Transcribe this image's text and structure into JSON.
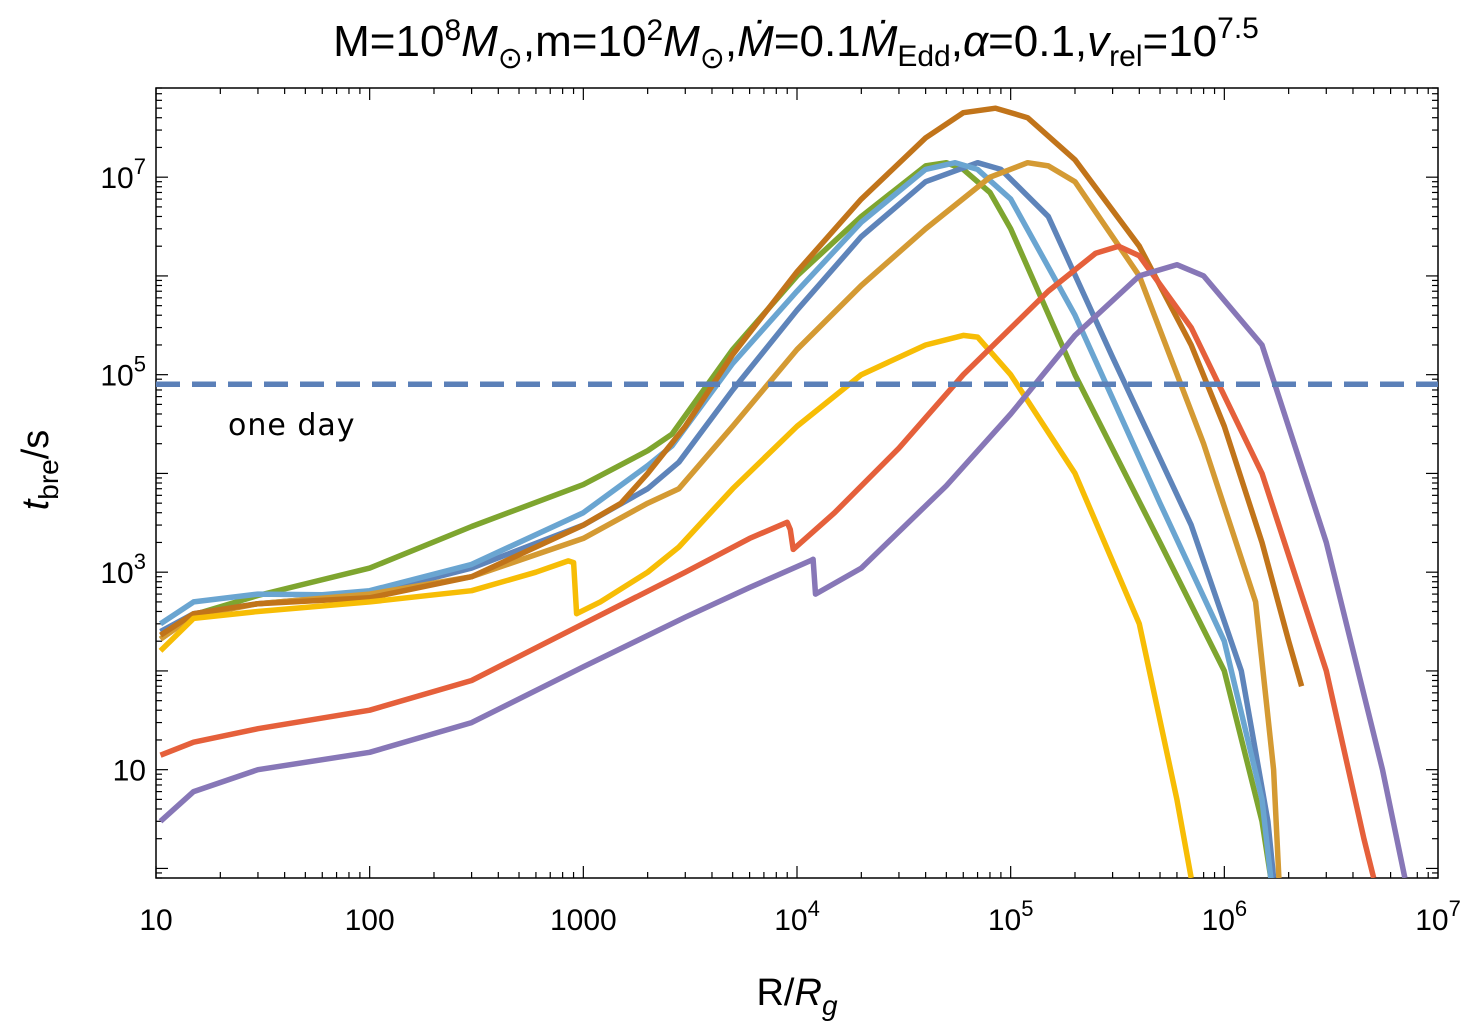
{
  "chart_data": {
    "type": "line",
    "title": {
      "parts": [
        "M=10",
        "8",
        "M",
        "⊙",
        ",m=10",
        "2",
        "M",
        "⊙",
        ",",
        "Ṁ",
        "=0.1",
        "Ṁ",
        "Edd",
        ",",
        "α",
        "=0.1,",
        "v",
        "rel",
        "=10",
        "7.5"
      ]
    },
    "xlabel": {
      "main": "R/",
      "italic": "R",
      "sub": "g"
    },
    "ylabel": {
      "italic": "t",
      "sub": "bre",
      "main": "/s"
    },
    "x_scale": "log",
    "y_scale": "log",
    "xlim": [
      10,
      10000000
    ],
    "ylim": [
      0.8,
      80000000
    ],
    "x_ticks": [
      {
        "value": 10,
        "base": "10",
        "exp": ""
      },
      {
        "value": 100,
        "base": "100",
        "exp": ""
      },
      {
        "value": 1000,
        "base": "1000",
        "exp": ""
      },
      {
        "value": 10000,
        "base": "10",
        "exp": "4"
      },
      {
        "value": 100000,
        "base": "10",
        "exp": "5"
      },
      {
        "value": 1000000,
        "base": "10",
        "exp": "6"
      },
      {
        "value": 10000000,
        "base": "10",
        "exp": "7"
      }
    ],
    "y_ticks": [
      {
        "value": 10,
        "base": "10",
        "exp": ""
      },
      {
        "value": 1000,
        "base": "10",
        "exp": "3"
      },
      {
        "value": 100000,
        "base": "10",
        "exp": "5"
      },
      {
        "value": 10000000,
        "base": "10",
        "exp": "7"
      }
    ],
    "reference_line": {
      "y": 80000,
      "style": "dashed",
      "color": "#5b80b8",
      "label": "one day"
    },
    "series": [
      {
        "color": "#7ea52f",
        "points": [
          [
            10.5,
            210
          ],
          [
            15,
            370
          ],
          [
            30,
            580
          ],
          [
            100,
            1100
          ],
          [
            300,
            2900
          ],
          [
            1000,
            7700
          ],
          [
            2000,
            17000
          ],
          [
            2600,
            25000
          ],
          [
            5000,
            180000
          ],
          [
            10000,
            1000000
          ],
          [
            20000,
            4000000
          ],
          [
            40000,
            13000000
          ],
          [
            50000,
            14000000
          ],
          [
            60000,
            12000000
          ],
          [
            80000,
            7000000
          ],
          [
            100000,
            3000000
          ],
          [
            200000,
            100000
          ],
          [
            500000,
            2000
          ],
          [
            1000000,
            100
          ],
          [
            1500000,
            3
          ],
          [
            1650000,
            0.8
          ]
        ]
      },
      {
        "color": "#5e84ba",
        "points": [
          [
            10.5,
            250
          ],
          [
            15,
            380
          ],
          [
            30,
            480
          ],
          [
            100,
            600
          ],
          [
            300,
            1100
          ],
          [
            1000,
            3000
          ],
          [
            2000,
            7000
          ],
          [
            2800,
            13000
          ],
          [
            5000,
            70000
          ],
          [
            10000,
            450000
          ],
          [
            20000,
            2500000
          ],
          [
            40000,
            9000000
          ],
          [
            70000,
            14000000
          ],
          [
            90000,
            12000000
          ],
          [
            150000,
            4000000
          ],
          [
            300000,
            150000
          ],
          [
            700000,
            3000
          ],
          [
            1200000,
            100
          ],
          [
            1600000,
            3
          ],
          [
            1700000,
            0.8
          ]
        ]
      },
      {
        "color": "#6aa5d1",
        "points": [
          [
            10.5,
            300
          ],
          [
            15,
            500
          ],
          [
            30,
            600
          ],
          [
            60,
            590
          ],
          [
            100,
            650
          ],
          [
            300,
            1200
          ],
          [
            1000,
            4000
          ],
          [
            2000,
            12000
          ],
          [
            2600,
            19000
          ],
          [
            5000,
            130000
          ],
          [
            10000,
            700000
          ],
          [
            20000,
            3500000
          ],
          [
            40000,
            12000000
          ],
          [
            55000,
            14000000
          ],
          [
            70000,
            12000000
          ],
          [
            100000,
            6000000
          ],
          [
            200000,
            400000
          ],
          [
            500000,
            5000
          ],
          [
            1000000,
            200
          ],
          [
            1500000,
            5
          ],
          [
            1650000,
            0.8
          ]
        ]
      },
      {
        "color": "#d49a33",
        "points": [
          [
            10.5,
            210
          ],
          [
            15,
            360
          ],
          [
            30,
            480
          ],
          [
            100,
            600
          ],
          [
            300,
            900
          ],
          [
            1000,
            2200
          ],
          [
            2000,
            5000
          ],
          [
            2800,
            7000
          ],
          [
            5000,
            30000
          ],
          [
            10000,
            180000
          ],
          [
            20000,
            800000
          ],
          [
            40000,
            3000000
          ],
          [
            80000,
            10000000
          ],
          [
            120000,
            14000000
          ],
          [
            150000,
            13000000
          ],
          [
            200000,
            9000000
          ],
          [
            400000,
            1000000
          ],
          [
            800000,
            20000
          ],
          [
            1400000,
            500
          ],
          [
            1700000,
            10
          ],
          [
            1800000,
            0.8
          ]
        ]
      },
      {
        "color": "#c1741a",
        "points": [
          [
            10.5,
            230
          ],
          [
            15,
            380
          ],
          [
            30,
            480
          ],
          [
            100,
            550
          ],
          [
            300,
            900
          ],
          [
            1000,
            3000
          ],
          [
            1500,
            5000
          ],
          [
            2000,
            10000
          ],
          [
            3000,
            30000
          ],
          [
            5000,
            160000
          ],
          [
            10000,
            1100000
          ],
          [
            20000,
            6000000
          ],
          [
            40000,
            25000000
          ],
          [
            60000,
            45000000
          ],
          [
            85000,
            50000000
          ],
          [
            120000,
            40000000
          ],
          [
            200000,
            15000000
          ],
          [
            400000,
            2000000
          ],
          [
            700000,
            200000
          ],
          [
            1000000,
            30000
          ],
          [
            1500000,
            2000
          ],
          [
            2000000,
            200
          ],
          [
            2300000,
            70
          ]
        ]
      },
      {
        "color": "#f7bd05",
        "points": [
          [
            10.5,
            160
          ],
          [
            15,
            340
          ],
          [
            30,
            400
          ],
          [
            100,
            500
          ],
          [
            300,
            650
          ],
          [
            600,
            1000
          ],
          [
            850,
            1300
          ],
          [
            900,
            1250
          ],
          [
            930,
            380
          ],
          [
            1200,
            500
          ],
          [
            2000,
            1000
          ],
          [
            2800,
            1800
          ],
          [
            5000,
            7000
          ],
          [
            10000,
            30000
          ],
          [
            20000,
            100000
          ],
          [
            40000,
            200000
          ],
          [
            60000,
            250000
          ],
          [
            70000,
            240000
          ],
          [
            100000,
            100000
          ],
          [
            200000,
            10000
          ],
          [
            400000,
            300
          ],
          [
            600000,
            5
          ],
          [
            700000,
            0.8
          ]
        ]
      },
      {
        "color": "#e5603b",
        "points": [
          [
            10.5,
            14
          ],
          [
            15,
            19
          ],
          [
            30,
            26
          ],
          [
            100,
            40
          ],
          [
            300,
            80
          ],
          [
            1000,
            300
          ],
          [
            3000,
            1000
          ],
          [
            6000,
            2200
          ],
          [
            9000,
            3200
          ],
          [
            9300,
            2700
          ],
          [
            9600,
            1700
          ],
          [
            15000,
            4000
          ],
          [
            30000,
            18000
          ],
          [
            60000,
            100000
          ],
          [
            150000,
            700000
          ],
          [
            250000,
            1700000
          ],
          [
            320000,
            2000000
          ],
          [
            400000,
            1600000
          ],
          [
            700000,
            300000
          ],
          [
            1500000,
            10000
          ],
          [
            3000000,
            100
          ],
          [
            4500000,
            2
          ],
          [
            5000000,
            0.8
          ]
        ]
      },
      {
        "color": "#8777b7",
        "points": [
          [
            10.5,
            3
          ],
          [
            15,
            6
          ],
          [
            30,
            10
          ],
          [
            100,
            15
          ],
          [
            300,
            30
          ],
          [
            1000,
            110
          ],
          [
            3000,
            350
          ],
          [
            6000,
            700
          ],
          [
            11500,
            1300
          ],
          [
            11900,
            1350
          ],
          [
            12200,
            600
          ],
          [
            20000,
            1100
          ],
          [
            50000,
            7500
          ],
          [
            100000,
            40000
          ],
          [
            200000,
            250000
          ],
          [
            400000,
            1000000
          ],
          [
            600000,
            1300000
          ],
          [
            800000,
            1000000
          ],
          [
            1500000,
            200000
          ],
          [
            3000000,
            2000
          ],
          [
            5500000,
            10
          ],
          [
            7000000,
            0.8
          ]
        ]
      }
    ]
  }
}
